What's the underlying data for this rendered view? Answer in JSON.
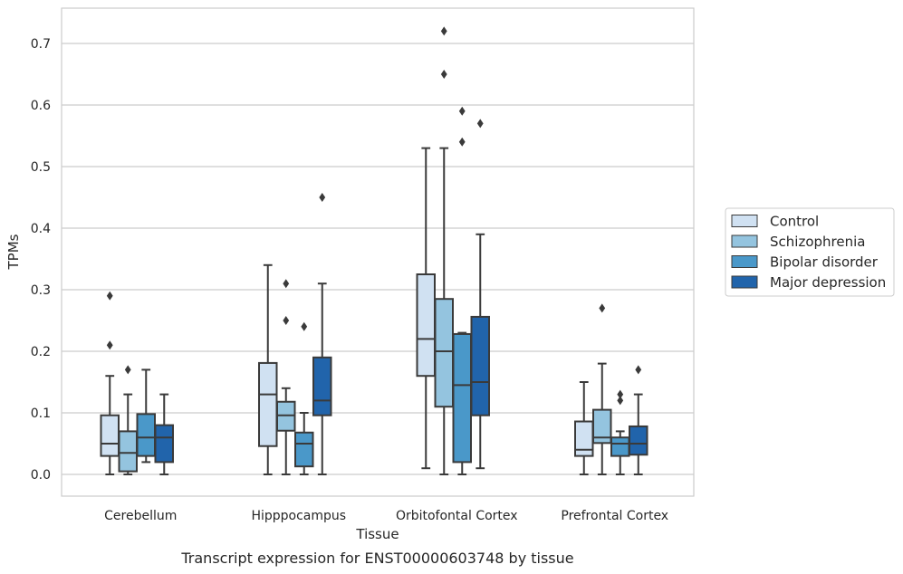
{
  "chart_data": {
    "type": "box",
    "xlabel": "Tissue",
    "ylabel": "TPMs",
    "caption": "Transcript expression for ENST00000603748 by tissue",
    "ylim": [
      -0.035,
      0.76
    ],
    "yticks": [
      0.0,
      0.1,
      0.2,
      0.3,
      0.4,
      0.5,
      0.6,
      0.7
    ],
    "ytick_labels": [
      "0.0",
      "0.1",
      "0.2",
      "0.3",
      "0.4",
      "0.5",
      "0.6",
      "0.7"
    ],
    "grid": "horizontal",
    "legend_position": "right",
    "categories": [
      "Cerebellum",
      "Hipppocampus",
      "Orbitofontal Cortex",
      "Prefrontal Cortex"
    ],
    "series": [
      {
        "name": "Control",
        "color": "#d0e1f2",
        "boxes": [
          {
            "whislo": 0.0,
            "q1": 0.03,
            "med": 0.05,
            "q3": 0.096,
            "whishi": 0.16,
            "fliers": [
              0.21,
              0.29
            ]
          },
          {
            "whislo": 0.0,
            "q1": 0.046,
            "med": 0.13,
            "q3": 0.181,
            "whishi": 0.34,
            "fliers": []
          },
          {
            "whislo": 0.01,
            "q1": 0.16,
            "med": 0.22,
            "q3": 0.325,
            "whishi": 0.53,
            "fliers": []
          },
          {
            "whislo": 0.0,
            "q1": 0.03,
            "med": 0.04,
            "q3": 0.086,
            "whishi": 0.15,
            "fliers": []
          }
        ]
      },
      {
        "name": "Schizophrenia",
        "color": "#94c4df",
        "boxes": [
          {
            "whislo": 0.0,
            "q1": 0.005,
            "med": 0.035,
            "q3": 0.07,
            "whishi": 0.13,
            "fliers": [
              0.17
            ]
          },
          {
            "whislo": 0.0,
            "q1": 0.071,
            "med": 0.096,
            "q3": 0.118,
            "whishi": 0.14,
            "fliers": [
              0.25,
              0.31
            ]
          },
          {
            "whislo": 0.0,
            "q1": 0.11,
            "med": 0.2,
            "q3": 0.285,
            "whishi": 0.53,
            "fliers": [
              0.65,
              0.72
            ]
          },
          {
            "whislo": 0.0,
            "q1": 0.051,
            "med": 0.06,
            "q3": 0.105,
            "whishi": 0.18,
            "fliers": [
              0.27
            ]
          }
        ]
      },
      {
        "name": "Bipolar disorder",
        "color": "#4a98c9",
        "boxes": [
          {
            "whislo": 0.02,
            "q1": 0.03,
            "med": 0.06,
            "q3": 0.098,
            "whishi": 0.17,
            "fliers": []
          },
          {
            "whislo": 0.0,
            "q1": 0.013,
            "med": 0.05,
            "q3": 0.068,
            "whishi": 0.1,
            "fliers": [
              0.24
            ]
          },
          {
            "whislo": 0.0,
            "q1": 0.02,
            "med": 0.145,
            "q3": 0.228,
            "whishi": 0.23,
            "fliers": [
              0.54,
              0.59
            ]
          },
          {
            "whislo": 0.0,
            "q1": 0.03,
            "med": 0.05,
            "q3": 0.06,
            "whishi": 0.07,
            "fliers": [
              0.12,
              0.13
            ]
          }
        ]
      },
      {
        "name": "Major depression",
        "color": "#2164ab",
        "boxes": [
          {
            "whislo": 0.0,
            "q1": 0.02,
            "med": 0.06,
            "q3": 0.08,
            "whishi": 0.13,
            "fliers": []
          },
          {
            "whislo": 0.0,
            "q1": 0.096,
            "med": 0.12,
            "q3": 0.19,
            "whishi": 0.31,
            "fliers": [
              0.45
            ]
          },
          {
            "whislo": 0.01,
            "q1": 0.096,
            "med": 0.15,
            "q3": 0.256,
            "whishi": 0.39,
            "fliers": [
              0.57
            ]
          },
          {
            "whislo": 0.0,
            "q1": 0.032,
            "med": 0.05,
            "q3": 0.078,
            "whishi": 0.13,
            "fliers": [
              0.17
            ]
          }
        ]
      }
    ]
  },
  "colors": {
    "grid": "#cccccc",
    "frame": "#cccccc",
    "box_edge": "#3a3a3a",
    "text": "#262626"
  }
}
